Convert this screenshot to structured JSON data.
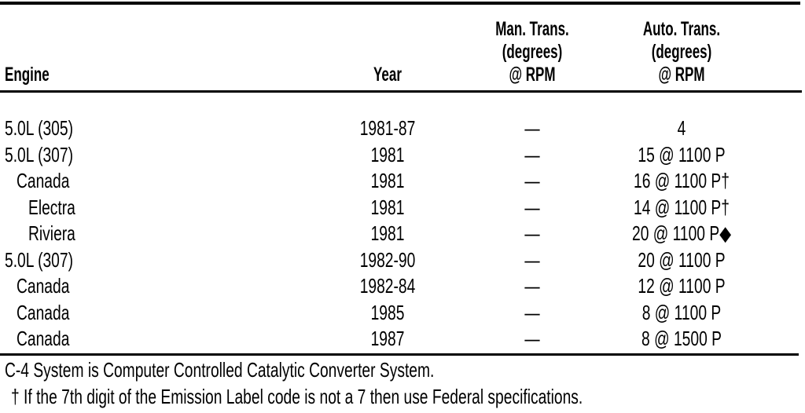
{
  "table": {
    "headers": {
      "engine": "Engine",
      "year": "Year",
      "man_trans": [
        "Man. Trans.",
        "(degrees)",
        "@ RPM"
      ],
      "auto_trans": [
        "Auto. Trans.",
        "(degrees)",
        "@ RPM"
      ]
    },
    "rows": [
      {
        "engine": "5.0L (305)",
        "indent": 0,
        "year": "1981-87",
        "man": "—",
        "auto": "4"
      },
      {
        "engine": "5.0L (307)",
        "indent": 0,
        "year": "1981",
        "man": "—",
        "auto": "15 @ 1100 P"
      },
      {
        "engine": "Canada",
        "indent": 1,
        "year": "1981",
        "man": "—",
        "auto": "16 @ 1100 P†"
      },
      {
        "engine": "Electra",
        "indent": 2,
        "year": "1981",
        "man": "—",
        "auto": "14 @ 1100 P†"
      },
      {
        "engine": "Riviera",
        "indent": 2,
        "year": "1981",
        "man": "—",
        "auto": "20 @ 1100 P◆"
      },
      {
        "engine": "5.0L (307)",
        "indent": 0,
        "year": "1982-90",
        "man": "—",
        "auto": "20 @ 1100 P"
      },
      {
        "engine": "Canada",
        "indent": 1,
        "year": "1982-84",
        "man": "—",
        "auto": "12 @ 1100 P"
      },
      {
        "engine": "Canada",
        "indent": 1,
        "year": "1985",
        "man": "—",
        "auto": "8 @ 1100 P"
      },
      {
        "engine": "Canada",
        "indent": 1,
        "year": "1987",
        "man": "—",
        "auto": "8 @ 1500 P"
      }
    ]
  },
  "footnotes": [
    "C-4 System is Computer Controlled Catalytic Converter System.",
    "† If the 7th digit of the Emission Label code is not a 7 then use Federal specifications."
  ]
}
